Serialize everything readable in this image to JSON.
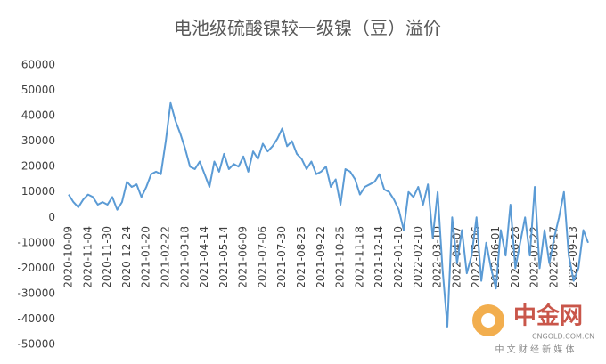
{
  "chart_data": {
    "type": "line",
    "title": "电池级硫酸镍较一级镍（豆）溢价",
    "categories": [
      "2020-10-09",
      null,
      null,
      null,
      "2020-11-04",
      null,
      null,
      null,
      "2020-11-30",
      null,
      null,
      null,
      "2020-12-24",
      null,
      null,
      null,
      "2021-01-20",
      null,
      null,
      null,
      "2021-02-22",
      null,
      null,
      null,
      "2021-03-18",
      null,
      null,
      null,
      "2021-04-14",
      null,
      null,
      null,
      "2021-05-14",
      null,
      null,
      null,
      "2021-06-09",
      null,
      null,
      null,
      "2021-07-06",
      null,
      null,
      null,
      "2021-07-30",
      null,
      null,
      null,
      "2021-08-25",
      null,
      null,
      null,
      "2021-09-22",
      null,
      null,
      null,
      "2021-10-25",
      null,
      null,
      null,
      "2021-11-18",
      null,
      null,
      null,
      "2021-12-14",
      null,
      null,
      null,
      "2022-01-10",
      null,
      null,
      null,
      "2022-02-10",
      null,
      null,
      null,
      "2022-03-10",
      null,
      null,
      null,
      "2022-04-07",
      null,
      null,
      null,
      "2022-05-06",
      null,
      null,
      null,
      "2022-06-01",
      null,
      null,
      null,
      "2022-06-28",
      null,
      null,
      null,
      "2022-07-22",
      null,
      null,
      null,
      "2022-08-17",
      null,
      null,
      null,
      "2022-09-13",
      null,
      null,
      null
    ],
    "series": [
      {
        "name": "溢价",
        "color": "#5b9bd5",
        "values": [
          9000,
          6000,
          4000,
          7000,
          9000,
          8000,
          5000,
          6000,
          5000,
          8000,
          3000,
          6000,
          14000,
          12000,
          13000,
          8000,
          12000,
          17000,
          18000,
          17000,
          30000,
          45000,
          38000,
          33000,
          27000,
          20000,
          19000,
          22000,
          17000,
          12000,
          22000,
          18000,
          25000,
          19000,
          21000,
          20000,
          24000,
          18000,
          26000,
          23000,
          29000,
          26000,
          28000,
          31000,
          35000,
          28000,
          30000,
          25000,
          23000,
          19000,
          22000,
          17000,
          18000,
          20000,
          12000,
          15000,
          5000,
          19000,
          18000,
          15000,
          9000,
          12000,
          13000,
          14000,
          17000,
          11000,
          10000,
          7000,
          3000,
          -5000,
          10000,
          8000,
          12000,
          5000,
          13000,
          -8000,
          10000,
          -20000,
          -43000,
          0,
          -18000,
          -5000,
          -22000,
          -15000,
          0,
          -25000,
          -10000,
          -20000,
          -28000,
          -5000,
          -15000,
          5000,
          -20000,
          -10000,
          0,
          -15000,
          12000,
          -20000,
          -5000,
          -18000,
          -8000,
          0,
          10000,
          -15000,
          -25000,
          -20000,
          -5000,
          -10000
        ]
      }
    ],
    "ylim": [
      -50000,
      60000
    ],
    "yticks": [
      -50000,
      -40000,
      -30000,
      -20000,
      -10000,
      0,
      10000,
      20000,
      30000,
      40000,
      50000,
      60000
    ]
  },
  "watermark": {
    "brand": "中金网",
    "site": "CNGOLD.COM.CN",
    "tagline": "中 文 财 经 新 媒 体"
  }
}
